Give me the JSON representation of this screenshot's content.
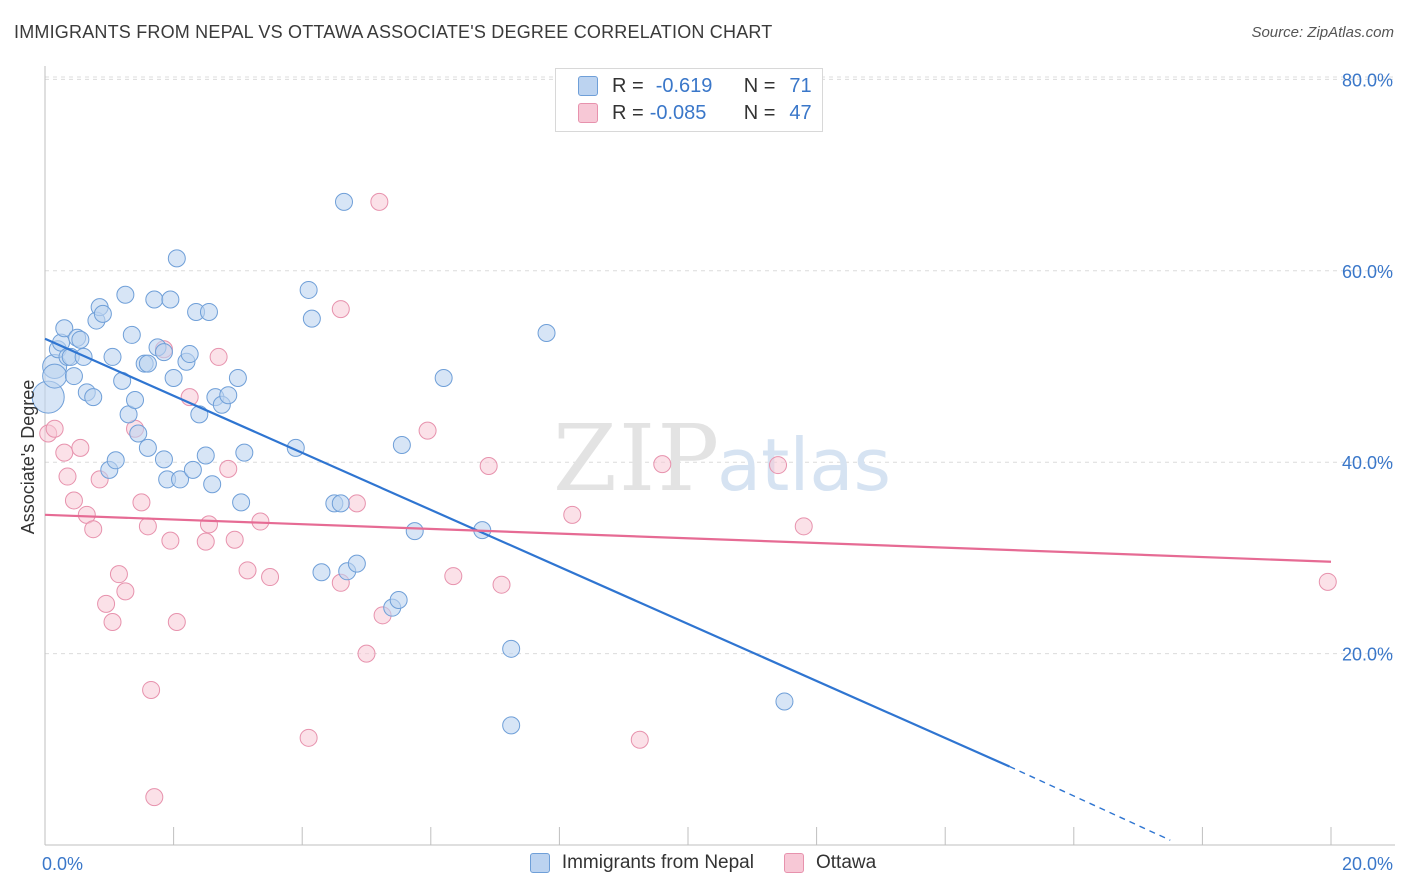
{
  "header": {
    "title": "IMMIGRANTS FROM NEPAL VS OTTAWA ASSOCIATE'S DEGREE CORRELATION CHART",
    "source": "Source: ZipAtlas.com"
  },
  "legend": {
    "rows": [
      {
        "r_label": "R =",
        "r_value": "-0.619",
        "n_label": "N =",
        "n_value": "71"
      },
      {
        "r_label": "R =",
        "r_value": "-0.085",
        "n_label": "N =",
        "n_value": "47"
      }
    ]
  },
  "watermark": {
    "zip": "ZIP",
    "atlas": "atlas"
  },
  "colors": {
    "nepal_fill": "#bcd3f0",
    "nepal_stroke": "#6f9fd8",
    "nepal_line": "#2f75d1",
    "ottawa_fill": "#f7c8d6",
    "ottawa_stroke": "#e792ad",
    "ottawa_line": "#e66b94",
    "axis_label": "#3a77c9",
    "grid": "#dcdcdc"
  },
  "chart_data": {
    "type": "scatter",
    "title": "IMMIGRANTS FROM NEPAL VS OTTAWA ASSOCIATE'S DEGREE CORRELATION CHART",
    "xlabel": "",
    "ylabel": "Associate's Degree",
    "xlim": [
      0,
      20
    ],
    "ylim": [
      0,
      82
    ],
    "x_tick_labels": [
      "0.0%",
      "20.0%"
    ],
    "y_ticks": [
      20,
      40,
      60,
      80
    ],
    "y_tick_labels": [
      "20.0%",
      "40.0%",
      "60.0%",
      "80.0%"
    ],
    "grid": true,
    "series": [
      {
        "name": "Immigrants from Nepal",
        "r": -0.619,
        "n": 71,
        "trend": {
          "x1": 0.0,
          "y1": 52.9,
          "x2": 15.0,
          "y2": 8.2,
          "dash_to_x": 17.5,
          "dash_to_y": 0.5
        },
        "points": [
          [
            0.05,
            46.8
          ],
          [
            0.15,
            50.0
          ],
          [
            0.15,
            49.0
          ],
          [
            0.2,
            51.8
          ],
          [
            0.25,
            52.5
          ],
          [
            0.3,
            54.0
          ],
          [
            0.35,
            51.0
          ],
          [
            0.4,
            51.0
          ],
          [
            0.45,
            49.0
          ],
          [
            0.5,
            53.0
          ],
          [
            0.55,
            52.8
          ],
          [
            0.6,
            51.0
          ],
          [
            0.65,
            47.3
          ],
          [
            0.75,
            46.8
          ],
          [
            0.8,
            54.8
          ],
          [
            0.85,
            56.2
          ],
          [
            0.9,
            55.5
          ],
          [
            1.0,
            39.2
          ],
          [
            1.05,
            51.0
          ],
          [
            1.1,
            40.2
          ],
          [
            1.2,
            48.5
          ],
          [
            1.25,
            57.5
          ],
          [
            1.3,
            45.0
          ],
          [
            1.35,
            53.3
          ],
          [
            1.4,
            46.5
          ],
          [
            1.45,
            43.0
          ],
          [
            1.55,
            50.3
          ],
          [
            1.6,
            50.3
          ],
          [
            1.6,
            41.5
          ],
          [
            1.7,
            57.0
          ],
          [
            1.75,
            52.0
          ],
          [
            1.85,
            51.5
          ],
          [
            1.85,
            40.3
          ],
          [
            1.9,
            38.2
          ],
          [
            1.95,
            57.0
          ],
          [
            2.0,
            48.8
          ],
          [
            2.05,
            61.3
          ],
          [
            2.1,
            38.2
          ],
          [
            2.2,
            50.5
          ],
          [
            2.25,
            51.3
          ],
          [
            2.3,
            39.2
          ],
          [
            2.35,
            55.7
          ],
          [
            2.4,
            45.0
          ],
          [
            2.5,
            40.7
          ],
          [
            2.55,
            55.7
          ],
          [
            2.6,
            37.7
          ],
          [
            2.65,
            46.8
          ],
          [
            2.75,
            46.0
          ],
          [
            2.85,
            47.0
          ],
          [
            3.0,
            48.8
          ],
          [
            3.1,
            41.0
          ],
          [
            3.05,
            35.8
          ],
          [
            3.9,
            41.5
          ],
          [
            4.1,
            58.0
          ],
          [
            4.15,
            55.0
          ],
          [
            4.3,
            28.5
          ],
          [
            4.5,
            35.7
          ],
          [
            4.6,
            35.7
          ],
          [
            4.65,
            67.2
          ],
          [
            4.7,
            28.6
          ],
          [
            4.85,
            29.4
          ],
          [
            5.4,
            24.8
          ],
          [
            5.5,
            25.6
          ],
          [
            5.55,
            41.8
          ],
          [
            5.75,
            32.8
          ],
          [
            6.2,
            48.8
          ],
          [
            6.8,
            32.9
          ],
          [
            7.25,
            20.5
          ],
          [
            7.25,
            12.5
          ],
          [
            7.8,
            53.5
          ],
          [
            11.5,
            15.0
          ]
        ]
      },
      {
        "name": "Ottawa",
        "r": -0.085,
        "n": 47,
        "trend": {
          "x1": 0.0,
          "y1": 34.5,
          "x2": 20.0,
          "y2": 29.6
        },
        "points": [
          [
            0.05,
            43.0
          ],
          [
            0.15,
            43.5
          ],
          [
            0.3,
            41.0
          ],
          [
            0.35,
            38.5
          ],
          [
            0.45,
            36.0
          ],
          [
            0.55,
            41.5
          ],
          [
            0.65,
            34.5
          ],
          [
            0.75,
            33.0
          ],
          [
            0.85,
            38.2
          ],
          [
            0.95,
            25.2
          ],
          [
            1.05,
            23.3
          ],
          [
            1.15,
            28.3
          ],
          [
            1.25,
            26.5
          ],
          [
            1.4,
            43.5
          ],
          [
            1.5,
            35.8
          ],
          [
            1.6,
            33.3
          ],
          [
            1.65,
            16.2
          ],
          [
            1.7,
            5.0
          ],
          [
            1.85,
            51.8
          ],
          [
            1.95,
            31.8
          ],
          [
            2.05,
            23.3
          ],
          [
            2.25,
            46.8
          ],
          [
            2.5,
            31.7
          ],
          [
            2.55,
            33.5
          ],
          [
            2.7,
            51.0
          ],
          [
            2.85,
            39.3
          ],
          [
            2.95,
            31.9
          ],
          [
            3.15,
            28.7
          ],
          [
            3.35,
            33.8
          ],
          [
            3.5,
            28.0
          ],
          [
            4.1,
            11.2
          ],
          [
            4.6,
            27.4
          ],
          [
            4.6,
            56.0
          ],
          [
            4.85,
            35.7
          ],
          [
            5.0,
            20.0
          ],
          [
            5.2,
            67.2
          ],
          [
            5.25,
            24.0
          ],
          [
            5.95,
            43.3
          ],
          [
            6.35,
            28.1
          ],
          [
            6.9,
            39.6
          ],
          [
            7.1,
            27.2
          ],
          [
            8.2,
            34.5
          ],
          [
            9.25,
            11.0
          ],
          [
            9.6,
            39.8
          ],
          [
            11.4,
            39.7
          ],
          [
            11.8,
            33.3
          ],
          [
            19.95,
            27.5
          ]
        ]
      }
    ]
  }
}
